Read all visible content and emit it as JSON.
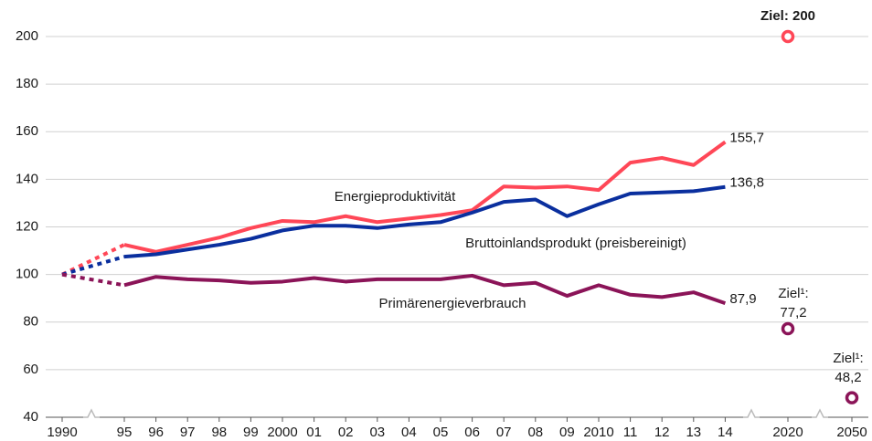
{
  "chart_data": {
    "type": "line",
    "categories": [
      "1990",
      "95",
      "96",
      "97",
      "98",
      "99",
      "2000",
      "01",
      "02",
      "03",
      "04",
      "05",
      "06",
      "07",
      "08",
      "09",
      "2010",
      "11",
      "12",
      "13",
      "14",
      "2020",
      "2050"
    ],
    "ylim": [
      40,
      200
    ],
    "yticks": [
      40,
      60,
      80,
      100,
      120,
      140,
      160,
      180,
      200
    ],
    "grid": true,
    "series": [
      {
        "name": "Energieproduktivität",
        "color": "#ff4757",
        "values": [
          100,
          112.5,
          109.5,
          112.5,
          115.5,
          119.5,
          122.5,
          122,
          124.5,
          122,
          123.5,
          125,
          127,
          137,
          136.5,
          137,
          135.5,
          147,
          149,
          146,
          155.7,
          null,
          null
        ],
        "value_labels": [
          null,
          null,
          null,
          null,
          null,
          null,
          null,
          null,
          null,
          null,
          null,
          null,
          null,
          null,
          null,
          null,
          null,
          null,
          null,
          null,
          "155,7",
          null,
          null
        ]
      },
      {
        "name": "Bruttoinlandsprodukt (preisbereinigt)",
        "color": "#0a2f9e",
        "values": [
          100,
          107.5,
          108.5,
          110.5,
          112.5,
          115,
          118.5,
          120.5,
          120.5,
          119.5,
          121,
          122,
          126,
          130.5,
          131.5,
          124.5,
          129.5,
          134,
          134.5,
          135,
          136.8,
          null,
          null
        ],
        "value_labels": [
          null,
          null,
          null,
          null,
          null,
          null,
          null,
          null,
          null,
          null,
          null,
          null,
          null,
          null,
          null,
          null,
          null,
          null,
          null,
          null,
          "136,8",
          null,
          null
        ]
      },
      {
        "name": "Primärenergieverbrauch",
        "color": "#8b1458",
        "values": [
          100,
          95.5,
          99,
          98,
          97.5,
          96.5,
          97,
          98.5,
          97,
          98,
          98,
          98,
          99.5,
          95.5,
          96.5,
          91,
          95.5,
          91.5,
          90.5,
          92.5,
          87.9,
          null,
          null
        ],
        "value_labels": [
          null,
          null,
          null,
          null,
          null,
          null,
          null,
          null,
          null,
          null,
          null,
          null,
          null,
          null,
          null,
          null,
          null,
          null,
          null,
          null,
          "87,9",
          null,
          null
        ]
      }
    ],
    "targets": [
      {
        "category": "2020",
        "value": 200,
        "color": "#ff4757",
        "label": [
          "Ziel: 200"
        ]
      },
      {
        "category": "2020",
        "value": 77.2,
        "color": "#8b1458",
        "label": [
          "Ziel¹:",
          "77,2"
        ]
      },
      {
        "category": "2050",
        "value": 48.2,
        "color": "#8b1458",
        "label": [
          "Ziel¹:",
          "48,2"
        ]
      }
    ]
  }
}
